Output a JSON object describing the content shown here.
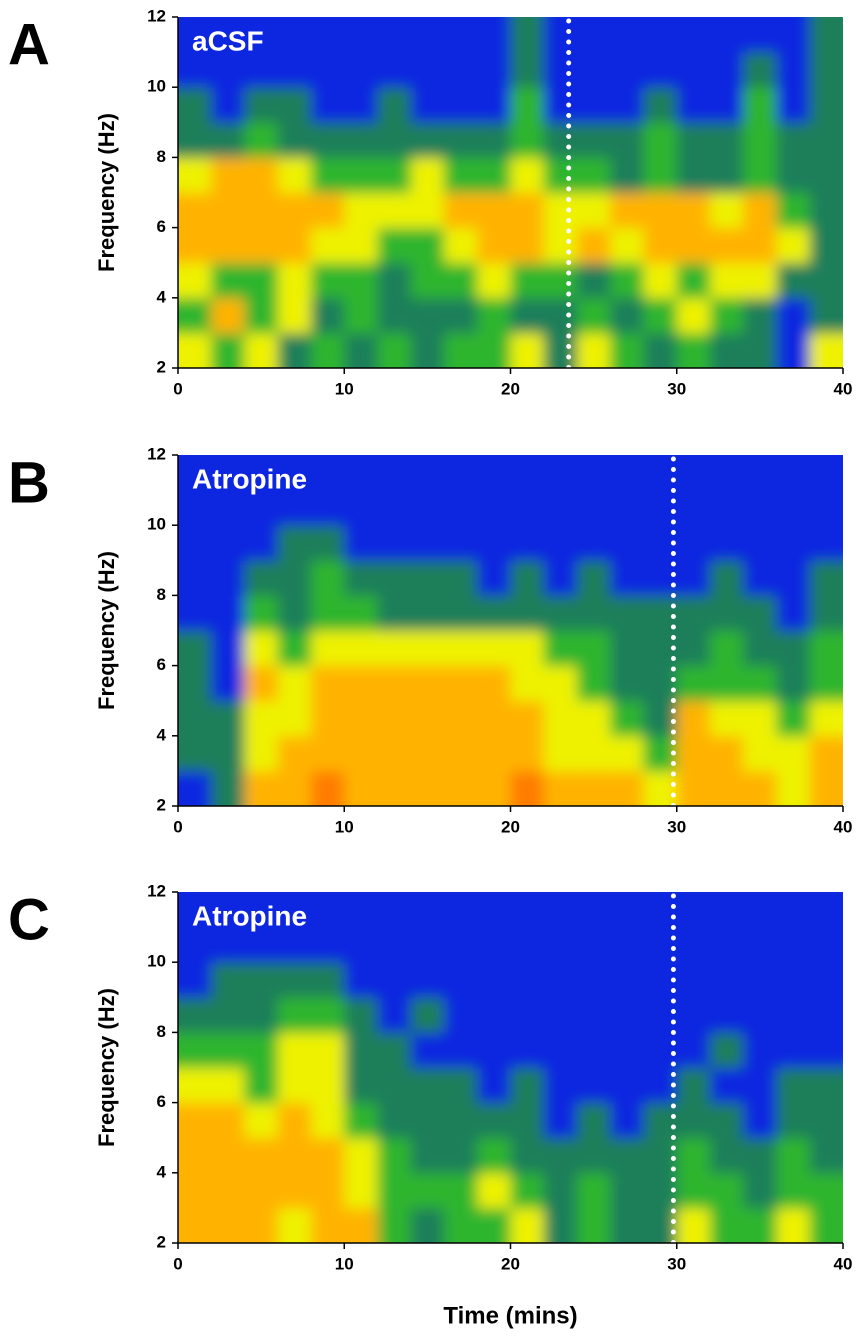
{
  "chart_data": [
    {
      "type": "heatmap",
      "panel_label": "A",
      "title": "aCSF",
      "ylabel": "Frequency (Hz)",
      "xlim": [
        0,
        40
      ],
      "ylim": [
        2,
        12
      ],
      "xticks": [
        0,
        10,
        20,
        30,
        40
      ],
      "yticks": [
        2,
        4,
        6,
        8,
        10,
        12
      ],
      "x_edges": [
        0,
        2,
        4,
        6,
        8,
        10,
        12,
        14,
        16,
        18,
        20,
        22,
        24,
        26,
        28,
        30,
        32,
        34,
        36,
        38,
        40
      ],
      "y_edges": [
        2,
        3,
        4,
        5,
        6,
        7,
        8,
        9,
        10,
        11,
        12
      ],
      "colors": [
        "#0a28e0",
        "#1f7f5a",
        "#2fb52f",
        "#eef200",
        "#ffb300",
        "#ff7b00"
      ],
      "marker_x": 23.5,
      "values": [
        [
          3,
          2,
          3,
          1,
          2,
          1,
          2,
          1,
          2,
          2,
          3,
          1,
          3,
          2,
          1,
          2,
          1,
          1,
          0,
          3
        ],
        [
          2,
          4,
          2,
          3,
          1,
          2,
          1,
          1,
          1,
          2,
          1,
          1,
          2,
          1,
          2,
          3,
          2,
          1,
          0,
          1
        ],
        [
          3,
          2,
          2,
          3,
          2,
          2,
          1,
          2,
          2,
          3,
          2,
          2,
          1,
          2,
          3,
          2,
          3,
          3,
          1,
          1
        ],
        [
          4,
          4,
          4,
          4,
          3,
          3,
          2,
          2,
          3,
          4,
          4,
          3,
          4,
          3,
          4,
          4,
          4,
          4,
          3,
          1
        ],
        [
          4,
          4,
          4,
          4,
          4,
          3,
          3,
          3,
          4,
          4,
          4,
          3,
          3,
          4,
          4,
          4,
          3,
          4,
          2,
          1
        ],
        [
          3,
          4,
          4,
          3,
          2,
          2,
          2,
          3,
          2,
          2,
          3,
          2,
          2,
          1,
          2,
          1,
          1,
          2,
          1,
          1
        ],
        [
          1,
          1,
          2,
          1,
          1,
          1,
          1,
          1,
          1,
          1,
          2,
          1,
          1,
          1,
          2,
          1,
          1,
          2,
          1,
          1
        ],
        [
          1,
          0,
          1,
          1,
          0,
          0,
          1,
          0,
          0,
          0,
          2,
          0,
          0,
          0,
          1,
          0,
          0,
          2,
          0,
          1
        ],
        [
          0,
          0,
          0,
          0,
          0,
          0,
          0,
          0,
          0,
          0,
          1,
          0,
          0,
          0,
          0,
          0,
          0,
          1,
          0,
          1
        ],
        [
          0,
          0,
          0,
          0,
          0,
          0,
          0,
          0,
          0,
          0,
          1,
          0,
          0,
          0,
          0,
          0,
          0,
          0,
          0,
          1
        ]
      ]
    },
    {
      "type": "heatmap",
      "panel_label": "B",
      "title": "Atropine",
      "ylabel": "Frequency (Hz)",
      "xlim": [
        0,
        40
      ],
      "ylim": [
        2,
        12
      ],
      "xticks": [
        0,
        10,
        20,
        30,
        40
      ],
      "yticks": [
        2,
        4,
        6,
        8,
        10,
        12
      ],
      "x_edges": [
        0,
        2,
        4,
        6,
        8,
        10,
        12,
        14,
        16,
        18,
        20,
        22,
        24,
        26,
        28,
        30,
        32,
        34,
        36,
        38,
        40
      ],
      "y_edges": [
        2,
        3,
        4,
        5,
        6,
        7,
        8,
        9,
        10,
        11,
        12
      ],
      "colors": [
        "#0a28e0",
        "#1f7f5a",
        "#2fb52f",
        "#eef200",
        "#ffb300",
        "#ff7b00"
      ],
      "marker_x": 29.8,
      "values": [
        [
          0,
          1,
          4,
          4,
          5,
          4,
          4,
          4,
          4,
          4,
          5,
          4,
          4,
          4,
          3,
          4,
          4,
          4,
          3,
          4
        ],
        [
          1,
          1,
          3,
          4,
          4,
          4,
          4,
          4,
          4,
          4,
          4,
          3,
          3,
          3,
          2,
          4,
          4,
          3,
          3,
          4
        ],
        [
          1,
          1,
          3,
          3,
          4,
          4,
          4,
          4,
          4,
          4,
          4,
          3,
          3,
          2,
          1,
          4,
          3,
          3,
          2,
          3
        ],
        [
          1,
          0,
          4,
          3,
          4,
          4,
          4,
          4,
          4,
          4,
          3,
          3,
          2,
          1,
          1,
          2,
          2,
          2,
          1,
          2
        ],
        [
          1,
          0,
          3,
          2,
          3,
          3,
          3,
          3,
          3,
          3,
          3,
          2,
          2,
          1,
          1,
          1,
          2,
          1,
          1,
          2
        ],
        [
          0,
          0,
          2,
          1,
          2,
          2,
          1,
          1,
          1,
          1,
          1,
          1,
          1,
          1,
          1,
          1,
          1,
          1,
          0,
          1
        ],
        [
          0,
          0,
          1,
          1,
          2,
          1,
          1,
          1,
          1,
          0,
          1,
          0,
          1,
          0,
          0,
          0,
          1,
          0,
          0,
          1
        ],
        [
          0,
          0,
          0,
          1,
          1,
          0,
          0,
          0,
          0,
          0,
          0,
          0,
          0,
          0,
          0,
          0,
          0,
          0,
          0,
          0
        ],
        [
          0,
          0,
          0,
          0,
          0,
          0,
          0,
          0,
          0,
          0,
          0,
          0,
          0,
          0,
          0,
          0,
          0,
          0,
          0,
          0
        ],
        [
          0,
          0,
          0,
          0,
          0,
          0,
          0,
          0,
          0,
          0,
          0,
          0,
          0,
          0,
          0,
          0,
          0,
          0,
          0,
          0
        ]
      ]
    },
    {
      "type": "heatmap",
      "panel_label": "C",
      "title": "Atropine",
      "ylabel": "Frequency (Hz)",
      "xlabel": "Time (mins)",
      "xlim": [
        0,
        40
      ],
      "ylim": [
        2,
        12
      ],
      "xticks": [
        0,
        10,
        20,
        30,
        40
      ],
      "yticks": [
        2,
        4,
        6,
        8,
        10,
        12
      ],
      "x_edges": [
        0,
        2,
        4,
        6,
        8,
        10,
        12,
        14,
        16,
        18,
        20,
        22,
        24,
        26,
        28,
        30,
        32,
        34,
        36,
        38,
        40
      ],
      "y_edges": [
        2,
        3,
        4,
        5,
        6,
        7,
        8,
        9,
        10,
        11,
        12
      ],
      "colors": [
        "#0a28e0",
        "#1f7f5a",
        "#2fb52f",
        "#eef200",
        "#ffb300",
        "#ff7b00"
      ],
      "marker_x": 29.8,
      "values": [
        [
          4,
          4,
          4,
          3,
          4,
          4,
          2,
          1,
          2,
          2,
          3,
          1,
          2,
          1,
          1,
          3,
          2,
          2,
          3,
          2
        ],
        [
          4,
          4,
          4,
          4,
          4,
          3,
          2,
          2,
          2,
          3,
          2,
          1,
          2,
          1,
          1,
          2,
          2,
          1,
          2,
          2
        ],
        [
          4,
          4,
          4,
          4,
          4,
          3,
          2,
          1,
          1,
          2,
          1,
          1,
          1,
          1,
          1,
          2,
          1,
          1,
          2,
          1
        ],
        [
          4,
          4,
          3,
          4,
          3,
          2,
          1,
          1,
          1,
          1,
          1,
          0,
          1,
          0,
          1,
          1,
          1,
          0,
          1,
          1
        ],
        [
          3,
          3,
          2,
          3,
          3,
          1,
          1,
          1,
          1,
          0,
          1,
          0,
          0,
          0,
          0,
          1,
          0,
          0,
          1,
          1
        ],
        [
          2,
          2,
          2,
          3,
          3,
          1,
          1,
          0,
          0,
          0,
          0,
          0,
          0,
          0,
          0,
          0,
          1,
          0,
          0,
          0
        ],
        [
          1,
          1,
          1,
          2,
          2,
          1,
          0,
          1,
          0,
          0,
          0,
          0,
          0,
          0,
          0,
          0,
          0,
          0,
          0,
          0
        ],
        [
          0,
          1,
          1,
          1,
          1,
          0,
          0,
          0,
          0,
          0,
          0,
          0,
          0,
          0,
          0,
          0,
          0,
          0,
          0,
          0
        ],
        [
          0,
          0,
          0,
          0,
          0,
          0,
          0,
          0,
          0,
          0,
          0,
          0,
          0,
          0,
          0,
          0,
          0,
          0,
          0,
          0
        ],
        [
          0,
          0,
          0,
          0,
          0,
          0,
          0,
          0,
          0,
          0,
          0,
          0,
          0,
          0,
          0,
          0,
          0,
          0,
          0,
          0
        ]
      ]
    }
  ]
}
